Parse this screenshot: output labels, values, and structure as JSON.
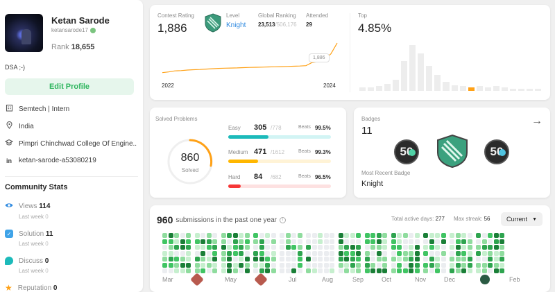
{
  "profile": {
    "name": "Ketan Sarode",
    "username": "ketansarode17",
    "rank_label": "Rank",
    "rank_value": "18,655",
    "bio": "DSA ;-)",
    "edit_label": "Edit Profile",
    "company": "Semtech | Intern",
    "location": "India",
    "school": "Pimpri Chinchwad College Of Engine...",
    "linkedin": "ketan-sarode-a53080219"
  },
  "community": {
    "title": "Community Stats",
    "last_week": "Last week",
    "items": [
      {
        "label": "Views",
        "value": "114",
        "delta": "0"
      },
      {
        "label": "Solution",
        "value": "11",
        "delta": "0"
      },
      {
        "label": "Discuss",
        "value": "0",
        "delta": "0"
      },
      {
        "label": "Reputation",
        "value": "0"
      }
    ]
  },
  "contest": {
    "rating_label": "Contest Rating",
    "rating": "1,886",
    "level_label": "Level",
    "level": "Knight",
    "global_label": "Global Ranking",
    "global_rank": "23,513",
    "global_total": "/506,176",
    "attended_label": "Attended",
    "attended": "29",
    "x_start": "2022",
    "x_end": "2024",
    "tooltip": "1,886",
    "top_label": "Top",
    "top_value": "4.85%",
    "line_color": "#ffa116",
    "rating_history": [
      1512,
      1521,
      1534,
      1538,
      1545,
      1549,
      1552,
      1557,
      1561,
      1566,
      1568,
      1570,
      1572,
      1575,
      1578,
      1580,
      1582,
      1584,
      1586,
      1588,
      1590,
      1593,
      1596,
      1600,
      1640,
      1651,
      1680,
      1750,
      1886
    ],
    "distribution": [
      3,
      3,
      4,
      6,
      10,
      26,
      40,
      33,
      22,
      14,
      8,
      5,
      4,
      3,
      4,
      3,
      4,
      3,
      2,
      2,
      2,
      2
    ],
    "highlight_bar": 13
  },
  "solved": {
    "title": "Solved Problems",
    "total": "860",
    "total_label": "Solved",
    "beats_label": "Beats",
    "rows": [
      {
        "level": "Easy",
        "count": "305",
        "total": "/778",
        "beats": "99.5%",
        "color": "#1cbaba",
        "track": "#d2f4f4",
        "fraction": 0.392
      },
      {
        "level": "Medium",
        "count": "471",
        "total": "/1612",
        "beats": "99.3%",
        "color": "#ffb700",
        "track": "#fff3d6",
        "fraction": 0.292
      },
      {
        "level": "Hard",
        "count": "84",
        "total": "/682",
        "beats": "96.5%",
        "color": "#f63737",
        "track": "#fde1e1",
        "fraction": 0.123
      }
    ]
  },
  "badges": {
    "title": "Badges",
    "count": "11",
    "recent_label": "Most Recent Badge",
    "recent": "Knight",
    "badge_names": [
      "50 Days Badge",
      "Knight Badge",
      "50 Days Badge"
    ],
    "badge_texts": [
      "50",
      "50"
    ]
  },
  "submissions": {
    "count": "960",
    "label": "submissions in the past one year",
    "active_label": "Total active days:",
    "active_value": "277",
    "streak_label": "Max streak:",
    "streak_value": "56",
    "dropdown": "Current",
    "months": [
      "Mar",
      "May",
      "Jul",
      "Aug",
      "Sep",
      "Oct",
      "Nov",
      "Dec",
      "Feb"
    ]
  }
}
